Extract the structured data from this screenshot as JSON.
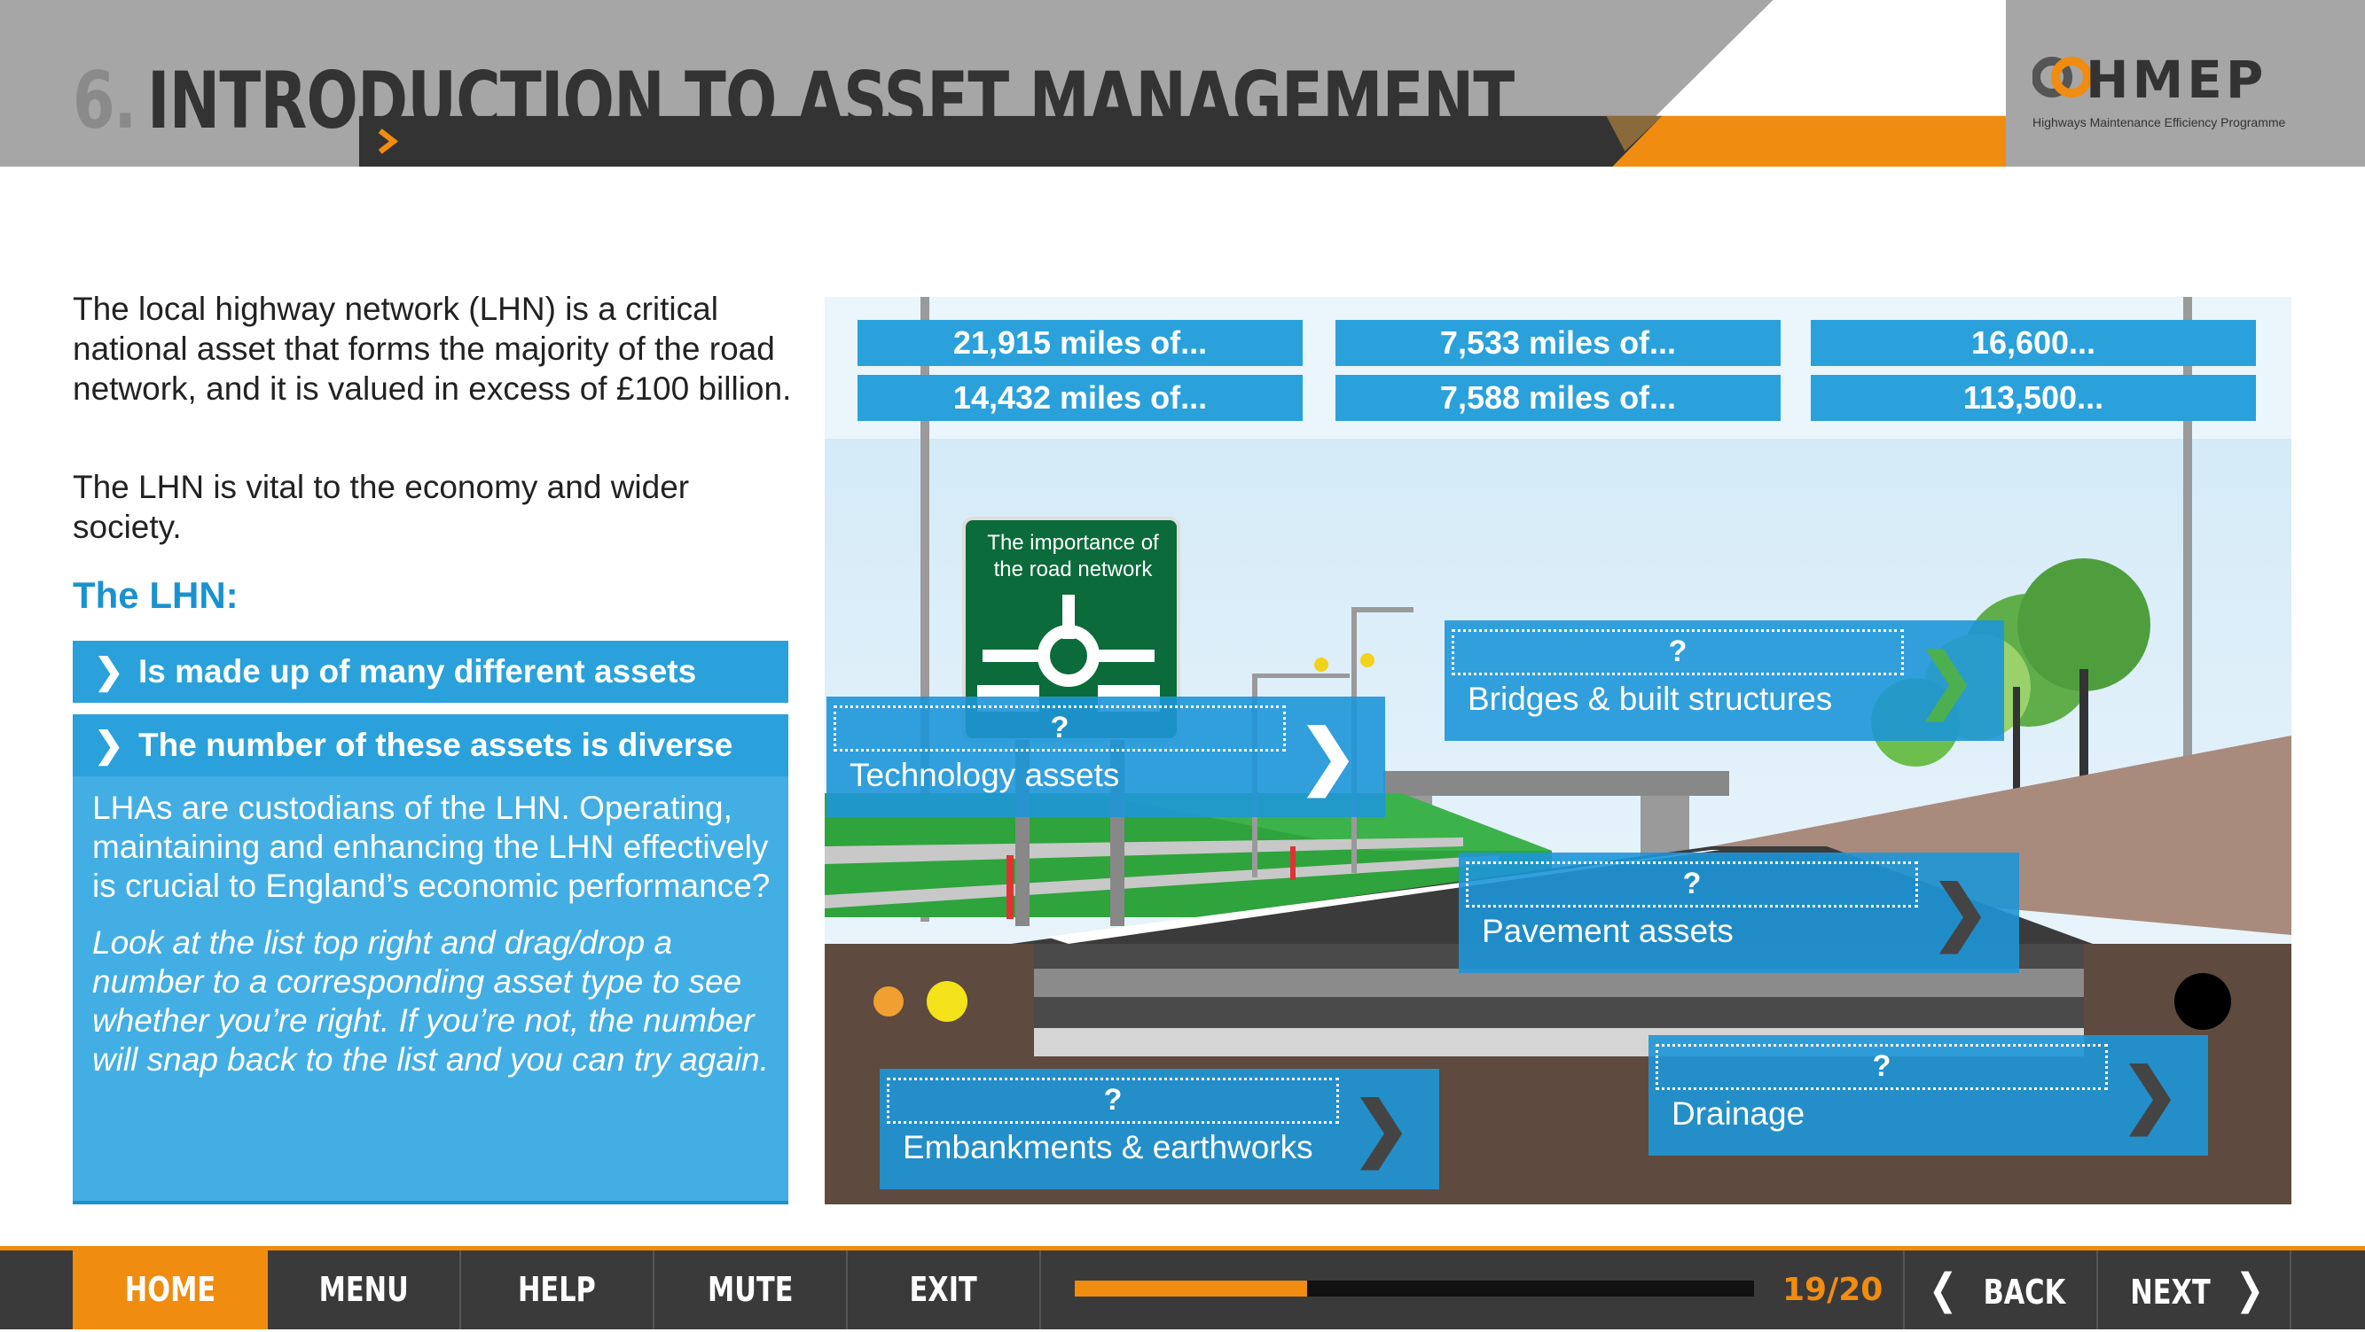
{
  "header": {
    "section_number": "6.",
    "title": "INTRODUCTION TO ASSET MANAGEMENT",
    "subtitle": "THE IMPORTANCE OF THE ROAD NETWORK",
    "logo_text": "HMEP",
    "logo_tagline": "Highways Maintenance Efficiency Programme"
  },
  "intro": {
    "paragraph1": "The local highway network (LHN) is a critical national asset that forms the majority of the road network, and it is valued in excess of £100 billion.",
    "paragraph2": "The LHN is vital to the economy and wider society.",
    "heading": "The LHN:"
  },
  "lhn_items": [
    {
      "label": "Is made up of many different assets"
    },
    {
      "label": "The number of these assets is diverse"
    }
  ],
  "info": {
    "text1": "LHAs are custodians of the LHN. Operating, maintaining and enhancing the LHN effectively is crucial to England’s economic performance?",
    "text2": "Look at the list top right and drag/drop a number to a corresponding asset type to see whether you’re right. If you’re not, the number will snap back to the list and you can try again."
  },
  "numbers": [
    "21,915 miles of...",
    "7,533 miles of...",
    "16,600...",
    "14,432 miles of...",
    "7,588 miles of...",
    "113,500..."
  ],
  "sign": {
    "text": "The importance of the road network"
  },
  "targets": [
    {
      "placeholder": "?",
      "label": "Technology assets"
    },
    {
      "placeholder": "?",
      "label": "Bridges & built structures"
    },
    {
      "placeholder": "?",
      "label": "Pavement assets"
    },
    {
      "placeholder": "?",
      "label": "Embankments & earthworks"
    },
    {
      "placeholder": "?",
      "label": "Drainage"
    }
  ],
  "nav": {
    "home": "HOME",
    "menu": "MENU",
    "help": "HELP",
    "mute": "MUTE",
    "exit": "EXIT",
    "back": "BACK",
    "next": "NEXT",
    "page_count": "19/20",
    "progress_fraction": 0.3421
  },
  "colors": {
    "accent_orange": "#f08c10",
    "blue": "#2aa1db",
    "dark": "#333333"
  }
}
